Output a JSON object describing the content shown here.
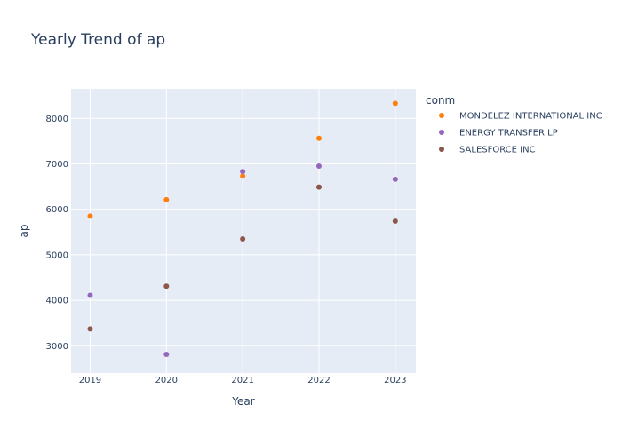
{
  "chart_data": {
    "type": "scatter",
    "title": "Yearly Trend of ap",
    "xlabel": "Year",
    "ylabel": "ap",
    "x": [
      2019,
      2020,
      2021,
      2022,
      2023
    ],
    "xlim": [
      2018.75,
      2023.27
    ],
    "ylim": [
      2400,
      8650
    ],
    "yticks": [
      3000,
      4000,
      5000,
      6000,
      7000,
      8000
    ],
    "grid": true,
    "legend_title": "conm",
    "legend_position": "right",
    "series": [
      {
        "name": "MONDELEZ INTERNATIONAL INC",
        "color": "#ff7f0e",
        "values": [
          5850,
          6210,
          6730,
          7560,
          8330
        ]
      },
      {
        "name": "ENERGY TRANSFER LP",
        "color": "#9467bd",
        "values": [
          4110,
          2810,
          6830,
          6950,
          6660
        ]
      },
      {
        "name": "SALESFORCE INC",
        "color": "#8c564b",
        "values": [
          3370,
          4310,
          5350,
          6490,
          5740
        ]
      }
    ]
  }
}
